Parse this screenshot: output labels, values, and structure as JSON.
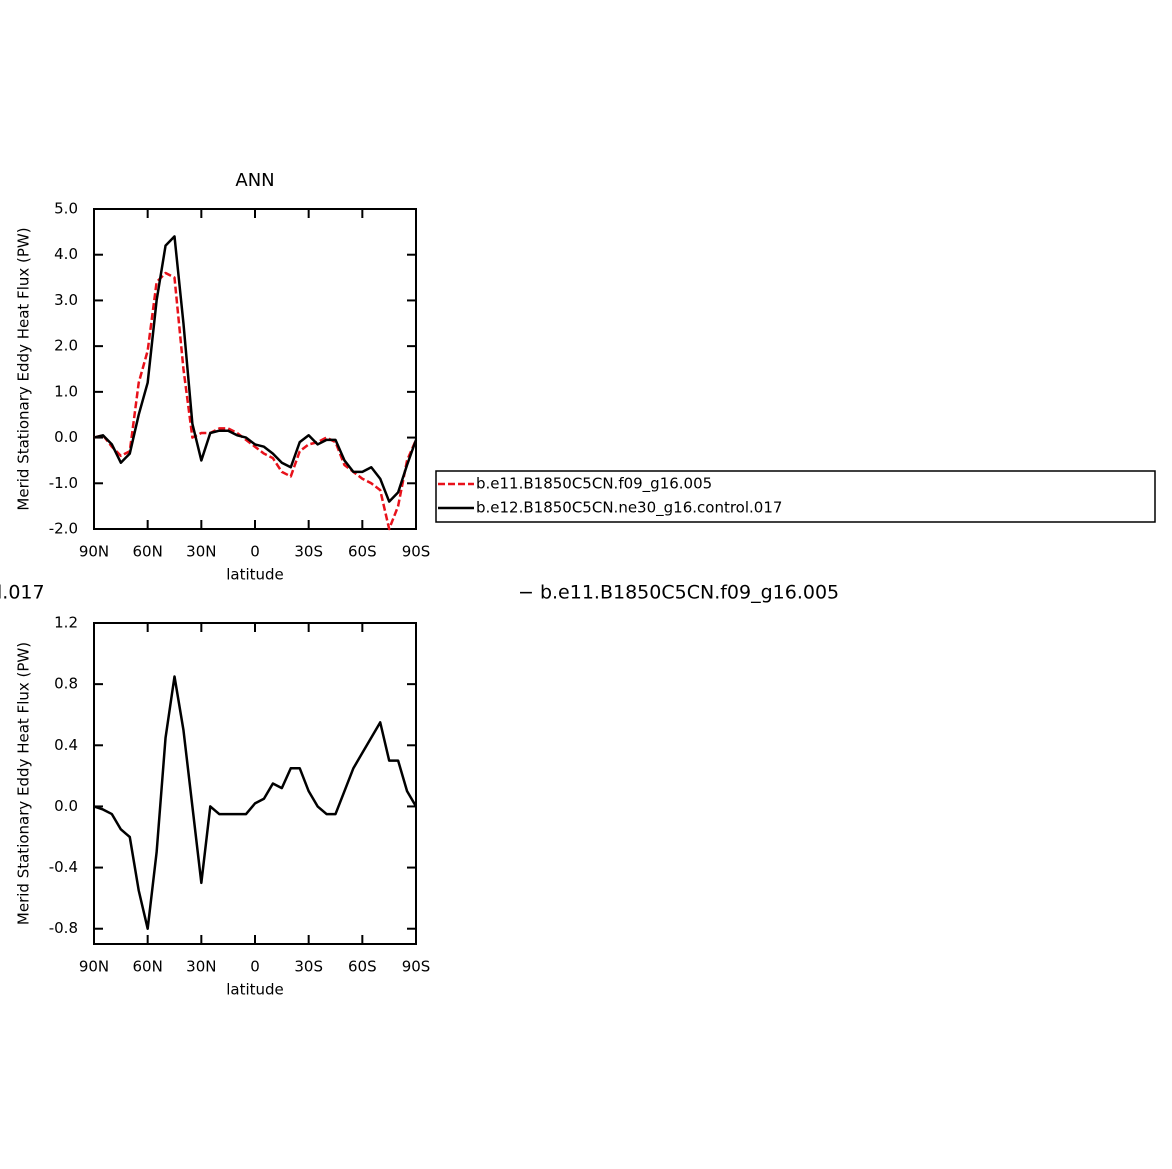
{
  "chart_data": [
    {
      "type": "line",
      "title": "ANN",
      "xlabel": "latitude",
      "ylabel": "Merid Stationary Eddy Heat Flux (PW)",
      "x": [
        90,
        85,
        80,
        75,
        70,
        65,
        60,
        55,
        50,
        45,
        40,
        35,
        30,
        25,
        20,
        15,
        10,
        5,
        0,
        -5,
        -10,
        -15,
        -20,
        -25,
        -30,
        -35,
        -40,
        -45,
        -50,
        -55,
        -60,
        -65,
        -70,
        -75,
        -80,
        -85,
        -90
      ],
      "xlim": [
        90,
        -90
      ],
      "xticks": [
        {
          "value": 90,
          "label": "90N"
        },
        {
          "value": 60,
          "label": "60N"
        },
        {
          "value": 30,
          "label": "30N"
        },
        0,
        {
          "value": -30,
          "label": "30S"
        },
        {
          "value": -60,
          "label": "60S"
        },
        {
          "value": -90,
          "label": "90S"
        }
      ],
      "ylim": [
        -2,
        5
      ],
      "yticks": [
        {
          "value": -2,
          "label": "-2.0"
        },
        {
          "value": -1,
          "label": "-1.0"
        },
        {
          "value": 0,
          "label": "0.0"
        },
        {
          "value": 1,
          "label": "1.0"
        },
        {
          "value": 2,
          "label": "2.0"
        },
        {
          "value": 3,
          "label": "3.0"
        },
        {
          "value": 4,
          "label": "4.0"
        },
        {
          "value": 5,
          "label": "5.0"
        }
      ],
      "legend": "right",
      "series": [
        {
          "name": "b.e11.B1850C5CN.f09_g16.005",
          "color": "#e8111a",
          "style": "dashed",
          "values": [
            0.0,
            0.05,
            -0.2,
            -0.4,
            -0.3,
            1.2,
            1.9,
            3.4,
            3.6,
            3.5,
            1.5,
            0.0,
            0.1,
            0.1,
            0.2,
            0.2,
            0.1,
            -0.05,
            -0.2,
            -0.35,
            -0.45,
            -0.75,
            -0.85,
            -0.3,
            -0.15,
            -0.1,
            0.0,
            -0.1,
            -0.6,
            -0.75,
            -0.9,
            -1.0,
            -1.15,
            -2.0,
            -1.5,
            -0.5,
            -0.05
          ]
        },
        {
          "name": "b.e12.B1850C5CN.ne30_g16.control.017",
          "color": "#000000",
          "style": "solid",
          "values": [
            0.0,
            0.05,
            -0.15,
            -0.55,
            -0.35,
            0.5,
            1.2,
            3.0,
            4.2,
            4.4,
            2.5,
            0.3,
            -0.5,
            0.1,
            0.15,
            0.15,
            0.05,
            0.0,
            -0.15,
            -0.2,
            -0.35,
            -0.55,
            -0.65,
            -0.1,
            0.05,
            -0.15,
            -0.05,
            -0.05,
            -0.5,
            -0.75,
            -0.75,
            -0.65,
            -0.9,
            -1.4,
            -1.2,
            -0.6,
            -0.05
          ]
        }
      ]
    },
    {
      "type": "line",
      "xlabel": "latitude",
      "ylabel": "Merid Stationary Eddy Heat Flux (PW)",
      "annotations": [
        "l.017",
        "− b.e11.B1850C5CN.f09_g16.005"
      ],
      "x": [
        90,
        85,
        80,
        75,
        70,
        65,
        60,
        55,
        50,
        45,
        40,
        35,
        30,
        25,
        20,
        15,
        10,
        5,
        0,
        -5,
        -10,
        -15,
        -20,
        -25,
        -30,
        -35,
        -40,
        -45,
        -50,
        -55,
        -60,
        -65,
        -70,
        -75,
        -80,
        -85,
        -90
      ],
      "xlim": [
        90,
        -90
      ],
      "xticks": [
        {
          "value": 90,
          "label": "90N"
        },
        {
          "value": 60,
          "label": "60N"
        },
        {
          "value": 30,
          "label": "30N"
        },
        0,
        {
          "value": -30,
          "label": "30S"
        },
        {
          "value": -60,
          "label": "60S"
        },
        {
          "value": -90,
          "label": "90S"
        }
      ],
      "ylim": [
        -0.9,
        1.2
      ],
      "yticks": [
        -0.8,
        -0.4,
        {
          "value": 0,
          "label": "0.0"
        },
        0.4,
        0.8,
        1.2
      ],
      "series": [
        {
          "color": "#000000",
          "style": "solid",
          "values": [
            0.0,
            -0.02,
            -0.05,
            -0.15,
            -0.2,
            -0.55,
            -0.8,
            -0.3,
            0.45,
            0.85,
            0.5,
            0.0,
            -0.5,
            0.0,
            -0.05,
            -0.05,
            -0.05,
            -0.05,
            0.02,
            0.05,
            0.15,
            0.12,
            0.25,
            0.25,
            0.1,
            0.0,
            -0.05,
            -0.05,
            0.1,
            0.25,
            0.35,
            0.45,
            0.55,
            0.3,
            0.3,
            0.1,
            0.0
          ]
        }
      ]
    }
  ]
}
